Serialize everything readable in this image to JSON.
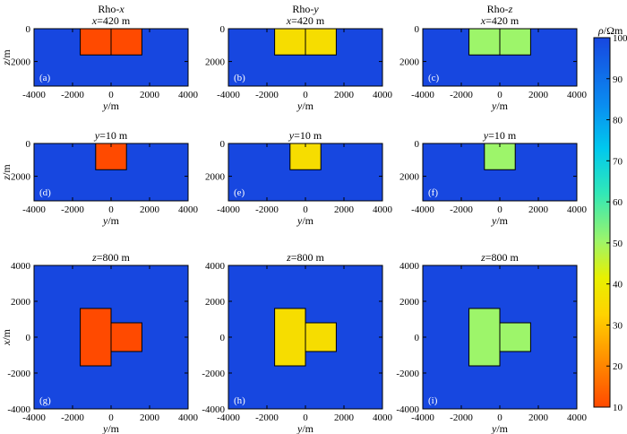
{
  "chart_data": {
    "type": "heatmap",
    "colorbar": {
      "label": "ρ/Ωm",
      "min": 10,
      "max": 100,
      "ticks": [
        10,
        20,
        30,
        40,
        50,
        60,
        70,
        80,
        90,
        100
      ]
    },
    "background_value": 100,
    "panels": [
      {
        "id": "a",
        "label": "(a)",
        "column_title": "Rho-x",
        "title": "x=420 m",
        "xlabel": "y/m",
        "ylabel": "z/m",
        "xlim": [
          -4000,
          4000
        ],
        "ylim": [
          0,
          3500
        ],
        "y_inverted": true,
        "xticks": [
          -4000,
          -2000,
          0,
          2000,
          4000
        ],
        "yticks": [
          0,
          2000
        ],
        "value": 10,
        "blocks": [
          {
            "x": [
              -1600,
              0
            ],
            "y": [
              0,
              1600
            ]
          },
          {
            "x": [
              0,
              1600
            ],
            "y": [
              0,
              1600
            ]
          }
        ]
      },
      {
        "id": "b",
        "label": "(b)",
        "column_title": "Rho-y",
        "title": "x=420 m",
        "xlabel": "y/m",
        "ylabel": "",
        "xlim": [
          -4000,
          4000
        ],
        "ylim": [
          0,
          3500
        ],
        "y_inverted": true,
        "xticks": [
          -4000,
          -2000,
          0,
          2000,
          4000
        ],
        "yticks": [
          0,
          2000
        ],
        "value": 35,
        "blocks": [
          {
            "x": [
              -1600,
              0
            ],
            "y": [
              0,
              1600
            ]
          },
          {
            "x": [
              0,
              1600
            ],
            "y": [
              0,
              1600
            ]
          }
        ]
      },
      {
        "id": "c",
        "label": "(c)",
        "column_title": "Rho-z",
        "title": "x=420 m",
        "xlabel": "y/m",
        "ylabel": "",
        "xlim": [
          -4000,
          4000
        ],
        "ylim": [
          0,
          3500
        ],
        "y_inverted": true,
        "xticks": [
          -4000,
          -2000,
          0,
          2000,
          4000
        ],
        "yticks": [
          0,
          2000
        ],
        "value": 47,
        "blocks": [
          {
            "x": [
              -1600,
              0
            ],
            "y": [
              0,
              1600
            ]
          },
          {
            "x": [
              0,
              1600
            ],
            "y": [
              0,
              1600
            ]
          }
        ]
      },
      {
        "id": "d",
        "label": "(d)",
        "title": "y=10 m",
        "xlabel": "y/m",
        "ylabel": "z/m",
        "xlim": [
          -4000,
          4000
        ],
        "ylim": [
          0,
          3500
        ],
        "y_inverted": true,
        "xticks": [
          -4000,
          -2000,
          0,
          2000,
          4000
        ],
        "yticks": [
          0,
          2000
        ],
        "value": 10,
        "blocks": [
          {
            "x": [
              -800,
              800
            ],
            "y": [
              0,
              1600
            ]
          }
        ]
      },
      {
        "id": "e",
        "label": "(e)",
        "title": "y=10 m",
        "xlabel": "y/m",
        "ylabel": "",
        "xlim": [
          -4000,
          4000
        ],
        "ylim": [
          0,
          3500
        ],
        "y_inverted": true,
        "xticks": [
          -4000,
          -2000,
          0,
          2000,
          4000
        ],
        "yticks": [
          0,
          2000
        ],
        "value": 35,
        "blocks": [
          {
            "x": [
              -800,
              800
            ],
            "y": [
              0,
              1600
            ]
          }
        ]
      },
      {
        "id": "f",
        "label": "(f)",
        "title": "y=10 m",
        "xlabel": "y/m",
        "ylabel": "",
        "xlim": [
          -4000,
          4000
        ],
        "ylim": [
          0,
          3500
        ],
        "y_inverted": true,
        "xticks": [
          -4000,
          -2000,
          0,
          2000,
          4000
        ],
        "yticks": [
          0,
          2000
        ],
        "value": 47,
        "blocks": [
          {
            "x": [
              -800,
              800
            ],
            "y": [
              0,
              1600
            ]
          }
        ]
      },
      {
        "id": "g",
        "label": "(g)",
        "title": "z=800 m",
        "xlabel": "y/m",
        "ylabel": "x/m",
        "xlim": [
          -4000,
          4000
        ],
        "ylim": [
          -4000,
          4000
        ],
        "y_inverted": false,
        "xticks": [
          -4000,
          -2000,
          0,
          2000,
          4000
        ],
        "yticks": [
          -4000,
          -2000,
          0,
          2000,
          4000
        ],
        "value": 10,
        "blocks": [
          {
            "x": [
              -1600,
              0
            ],
            "y": [
              -1600,
              1600
            ]
          },
          {
            "x": [
              0,
              1600
            ],
            "y": [
              -800,
              800
            ]
          }
        ]
      },
      {
        "id": "h",
        "label": "(h)",
        "title": "z=800 m",
        "xlabel": "y/m",
        "ylabel": "",
        "xlim": [
          -4000,
          4000
        ],
        "ylim": [
          -4000,
          4000
        ],
        "y_inverted": false,
        "xticks": [
          -4000,
          -2000,
          0,
          2000,
          4000
        ],
        "yticks": [
          -4000,
          -2000,
          0,
          2000,
          4000
        ],
        "value": 35,
        "blocks": [
          {
            "x": [
              -1600,
              0
            ],
            "y": [
              -1600,
              1600
            ]
          },
          {
            "x": [
              0,
              1600
            ],
            "y": [
              -800,
              800
            ]
          }
        ]
      },
      {
        "id": "i",
        "label": "(i)",
        "title": "z=800 m",
        "xlabel": "y/m",
        "ylabel": "",
        "xlim": [
          -4000,
          4000
        ],
        "ylim": [
          -4000,
          4000
        ],
        "y_inverted": false,
        "xticks": [
          -4000,
          -2000,
          0,
          2000,
          4000
        ],
        "yticks": [
          -4000,
          -2000,
          0,
          2000,
          4000
        ],
        "value": 47,
        "blocks": [
          {
            "x": [
              -1600,
              0
            ],
            "y": [
              -1600,
              1600
            ]
          },
          {
            "x": [
              0,
              1600
            ],
            "y": [
              -800,
              800
            ]
          }
        ]
      }
    ]
  }
}
